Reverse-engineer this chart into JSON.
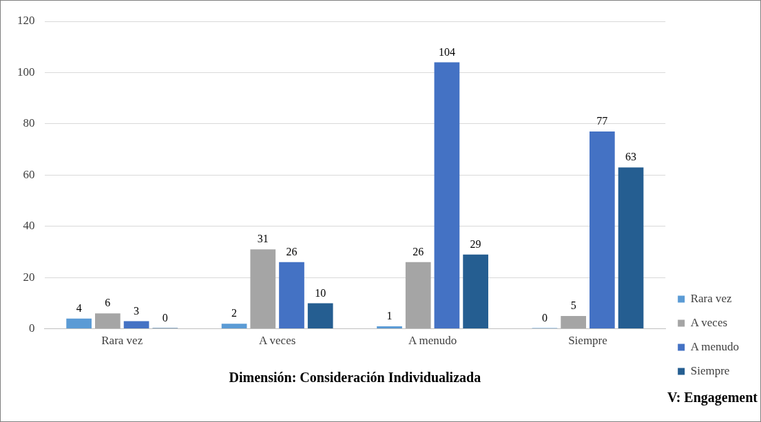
{
  "chart_data": {
    "type": "bar",
    "xlabel": "Dimensión: Consideración Individualizada",
    "annotations": [
      "V: Engagement"
    ],
    "categories": [
      "Rara vez",
      "A veces",
      "A menudo",
      "Siempre"
    ],
    "series": [
      {
        "name": "Rara vez",
        "color": "#5b9bd5",
        "values": [
          4,
          2,
          1,
          0
        ]
      },
      {
        "name": "A veces",
        "color": "#a5a5a5",
        "values": [
          6,
          31,
          26,
          5
        ]
      },
      {
        "name": "A menudo",
        "color": "#4472c4",
        "values": [
          3,
          26,
          104,
          77
        ]
      },
      {
        "name": "Siempre",
        "color": "#255e91",
        "values": [
          0,
          10,
          29,
          63
        ]
      }
    ],
    "ylim": [
      0,
      120
    ],
    "yticks": [
      0,
      20,
      40,
      60,
      80,
      100,
      120
    ],
    "grid": "y",
    "legend": "right",
    "data_labels": true
  }
}
